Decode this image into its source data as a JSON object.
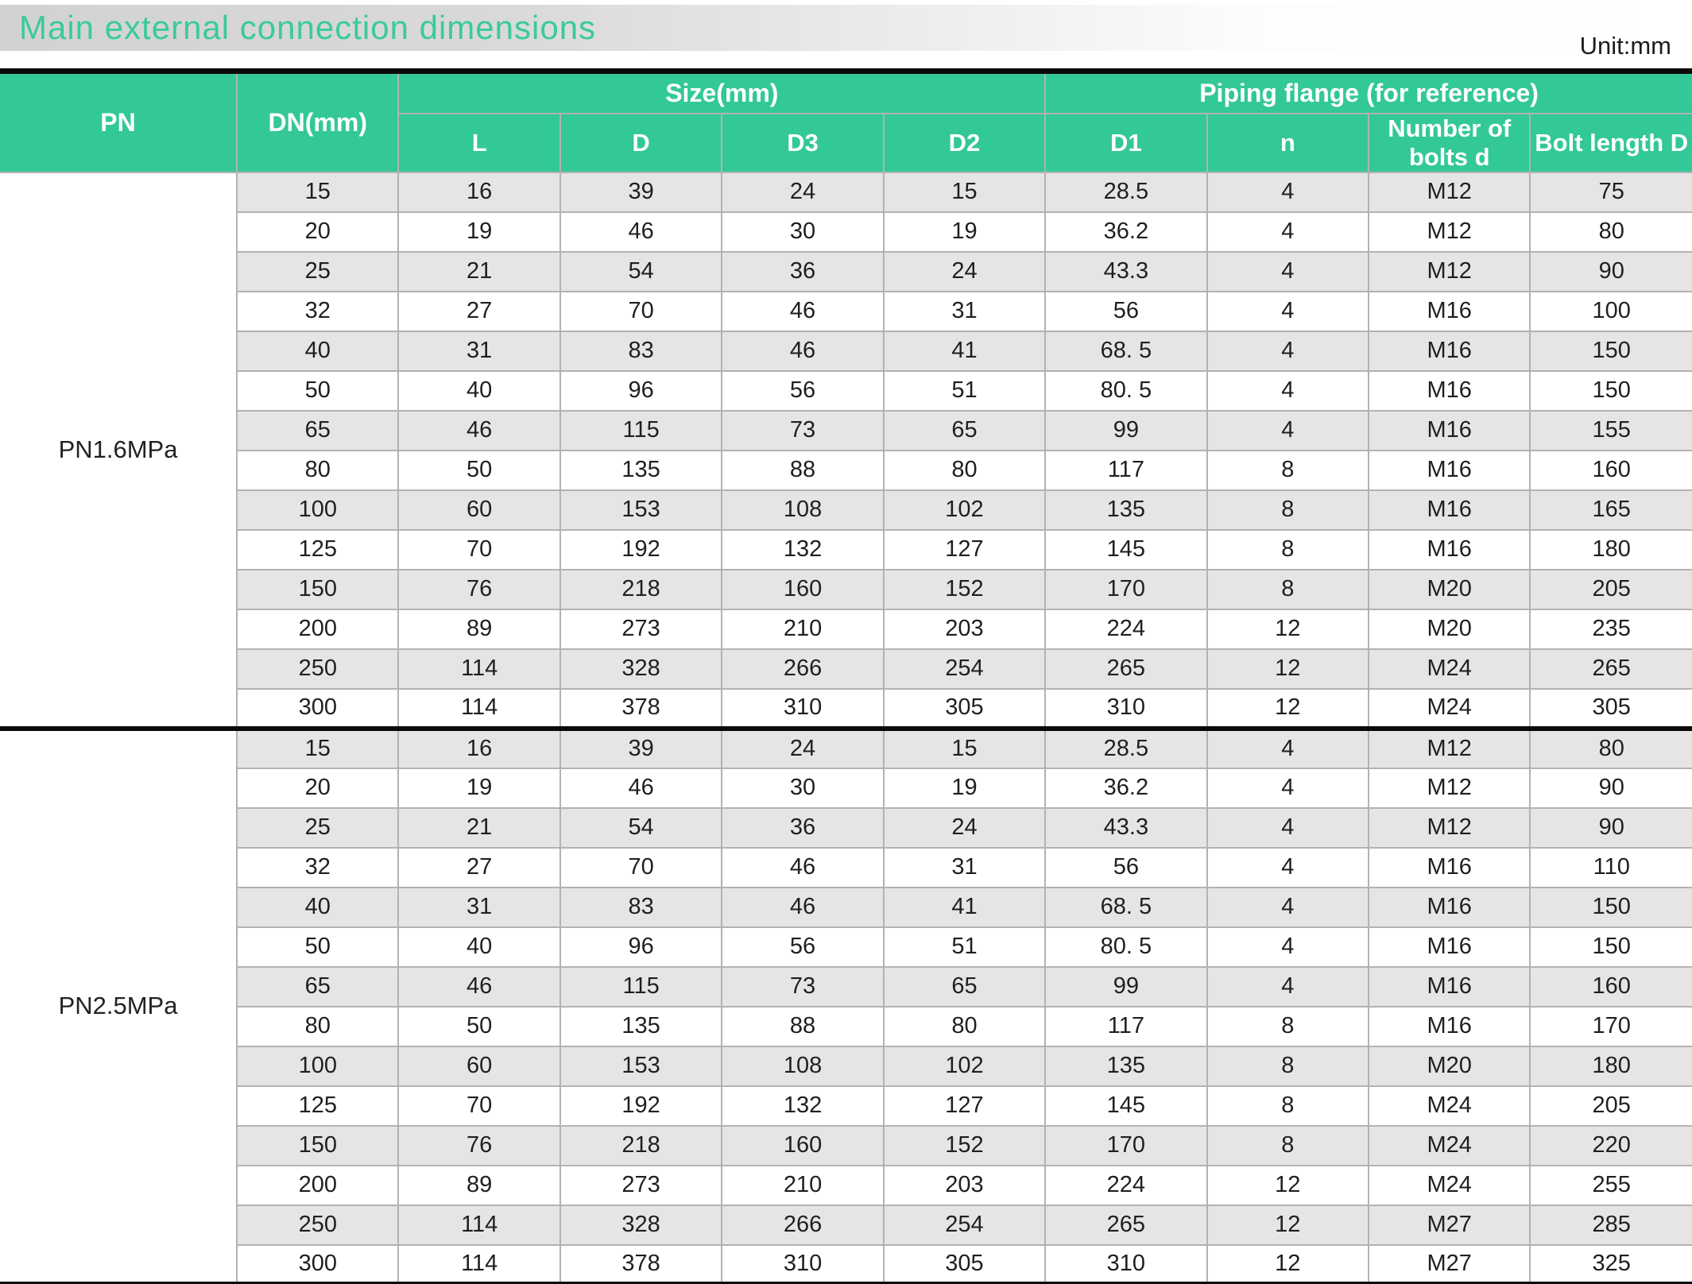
{
  "title": "Main external connection dimensions",
  "unit_label": "Unit:mm",
  "colors": {
    "accent_green": "#33c898",
    "title_green": "#3acb97",
    "row_alt_gray": "#e5e5e5",
    "grid_gray": "#b2b2b2",
    "heavy_line_black": "#0a0a0a"
  },
  "table": {
    "header": {
      "pn": "PN",
      "dn": "DN(mm)",
      "size_group": "Size(mm)",
      "flange_group": "Piping flange (for reference)",
      "size_cols": [
        "L",
        "D",
        "D3",
        "D2"
      ],
      "flange_cols": [
        "D1",
        "n",
        "Number of bolts d",
        "Bolt length D"
      ]
    },
    "groups": [
      {
        "pn_label": "PN1.6MPa",
        "rows": [
          [
            "15",
            "16",
            "39",
            "24",
            "15",
            "28.5",
            "4",
            "M12",
            "75"
          ],
          [
            "20",
            "19",
            "46",
            "30",
            "19",
            "36.2",
            "4",
            "M12",
            "80"
          ],
          [
            "25",
            "21",
            "54",
            "36",
            "24",
            "43.3",
            "4",
            "M12",
            "90"
          ],
          [
            "32",
            "27",
            "70",
            "46",
            "31",
            "56",
            "4",
            "M16",
            "100"
          ],
          [
            "40",
            "31",
            "83",
            "46",
            "41",
            "68. 5",
            "4",
            "M16",
            "150"
          ],
          [
            "50",
            "40",
            "96",
            "56",
            "51",
            "80. 5",
            "4",
            "M16",
            "150"
          ],
          [
            "65",
            "46",
            "115",
            "73",
            "65",
            "99",
            "4",
            "M16",
            "155"
          ],
          [
            "80",
            "50",
            "135",
            "88",
            "80",
            "117",
            "8",
            "M16",
            "160"
          ],
          [
            "100",
            "60",
            "153",
            "108",
            "102",
            "135",
            "8",
            "M16",
            "165"
          ],
          [
            "125",
            "70",
            "192",
            "132",
            "127",
            "145",
            "8",
            "M16",
            "180"
          ],
          [
            "150",
            "76",
            "218",
            "160",
            "152",
            "170",
            "8",
            "M20",
            "205"
          ],
          [
            "200",
            "89",
            "273",
            "210",
            "203",
            "224",
            "12",
            "M20",
            "235"
          ],
          [
            "250",
            "114",
            "328",
            "266",
            "254",
            "265",
            "12",
            "M24",
            "265"
          ],
          [
            "300",
            "114",
            "378",
            "310",
            "305",
            "310",
            "12",
            "M24",
            "305"
          ]
        ]
      },
      {
        "pn_label": "PN2.5MPa",
        "rows": [
          [
            "15",
            "16",
            "39",
            "24",
            "15",
            "28.5",
            "4",
            "M12",
            "80"
          ],
          [
            "20",
            "19",
            "46",
            "30",
            "19",
            "36.2",
            "4",
            "M12",
            "90"
          ],
          [
            "25",
            "21",
            "54",
            "36",
            "24",
            "43.3",
            "4",
            "M12",
            "90"
          ],
          [
            "32",
            "27",
            "70",
            "46",
            "31",
            "56",
            "4",
            "M16",
            "110"
          ],
          [
            "40",
            "31",
            "83",
            "46",
            "41",
            "68. 5",
            "4",
            "M16",
            "150"
          ],
          [
            "50",
            "40",
            "96",
            "56",
            "51",
            "80. 5",
            "4",
            "M16",
            "150"
          ],
          [
            "65",
            "46",
            "115",
            "73",
            "65",
            "99",
            "4",
            "M16",
            "160"
          ],
          [
            "80",
            "50",
            "135",
            "88",
            "80",
            "117",
            "8",
            "M16",
            "170"
          ],
          [
            "100",
            "60",
            "153",
            "108",
            "102",
            "135",
            "8",
            "M20",
            "180"
          ],
          [
            "125",
            "70",
            "192",
            "132",
            "127",
            "145",
            "8",
            "M24",
            "205"
          ],
          [
            "150",
            "76",
            "218",
            "160",
            "152",
            "170",
            "8",
            "M24",
            "220"
          ],
          [
            "200",
            "89",
            "273",
            "210",
            "203",
            "224",
            "12",
            "M24",
            "255"
          ],
          [
            "250",
            "114",
            "328",
            "266",
            "254",
            "265",
            "12",
            "M27",
            "285"
          ],
          [
            "300",
            "114",
            "378",
            "310",
            "305",
            "310",
            "12",
            "M27",
            "325"
          ]
        ]
      }
    ]
  }
}
